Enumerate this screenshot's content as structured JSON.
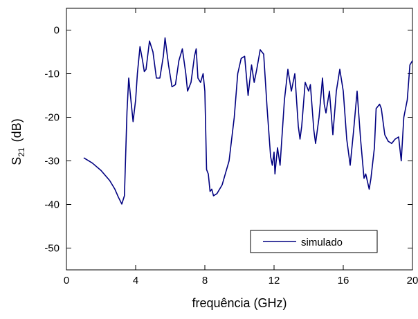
{
  "chart_data": {
    "type": "line",
    "xlabel": "frequência (GHz)",
    "ylabel": "S",
    "ylabel_subscript": "21",
    "ylabel_unit": "(dB)",
    "xlim": [
      0,
      20
    ],
    "xticks": [
      0,
      4,
      8,
      12,
      16,
      20
    ],
    "ylim": [
      -55,
      5
    ],
    "yticks": [
      -50,
      -40,
      -30,
      -20,
      -10,
      0
    ],
    "legend": "lower right",
    "series": [
      {
        "name": "simulado",
        "color": "#000080",
        "x": [
          1,
          1.5,
          2,
          2.5,
          2.8,
          3.0,
          3.2,
          3.35,
          3.5,
          3.6,
          3.7,
          3.85,
          4.0,
          4.1,
          4.25,
          4.4,
          4.5,
          4.6,
          4.8,
          5.0,
          5.2,
          5.4,
          5.6,
          5.7,
          5.9,
          6.1,
          6.3,
          6.5,
          6.7,
          6.9,
          7.0,
          7.2,
          7.4,
          7.5,
          7.6,
          7.75,
          7.9,
          8.0,
          8.1,
          8.2,
          8.3,
          8.4,
          8.5,
          8.7,
          9.0,
          9.4,
          9.7,
          9.9,
          10.1,
          10.3,
          10.5,
          10.7,
          10.85,
          11.0,
          11.2,
          11.4,
          11.6,
          11.8,
          11.9,
          12.0,
          12.05,
          12.2,
          12.35,
          12.6,
          12.8,
          13.0,
          13.2,
          13.4,
          13.5,
          13.6,
          13.8,
          14.0,
          14.1,
          14.3,
          14.4,
          14.6,
          14.8,
          14.9,
          15.0,
          15.2,
          15.4,
          15.6,
          15.8,
          16.0,
          16.2,
          16.4,
          16.6,
          16.8,
          17.0,
          17.2,
          17.3,
          17.5,
          17.6,
          17.8,
          17.9,
          18.1,
          18.2,
          18.4,
          18.6,
          18.8,
          19.0,
          19.2,
          19.35,
          19.5,
          19.7,
          19.85,
          20
        ],
        "values": [
          -29.3,
          -30.5,
          -32.2,
          -34.5,
          -36.5,
          -38.3,
          -39.9,
          -38,
          -18.7,
          -11,
          -15,
          -21,
          -16,
          -10,
          -3.8,
          -7,
          -9.5,
          -9,
          -2.5,
          -5,
          -11,
          -11,
          -6,
          -1.8,
          -8,
          -13,
          -12.5,
          -7,
          -4.3,
          -10,
          -14,
          -12,
          -6,
          -4.3,
          -11,
          -12,
          -10,
          -14,
          -32,
          -33,
          -37,
          -36.5,
          -38,
          -37.5,
          -35.5,
          -30,
          -20,
          -10,
          -6.5,
          -6,
          -15,
          -8,
          -12,
          -9,
          -4.5,
          -5.5,
          -18,
          -29,
          -31,
          -28,
          -33,
          -27,
          -31,
          -16,
          -9,
          -14,
          -10,
          -22,
          -25,
          -22,
          -12,
          -14,
          -12.5,
          -23,
          -26,
          -20,
          -11,
          -17,
          -19,
          -14,
          -24,
          -14,
          -9,
          -14,
          -25,
          -31,
          -23,
          -14,
          -25,
          -34,
          -33,
          -36.5,
          -34,
          -27,
          -18,
          -17,
          -18,
          -24,
          -25.5,
          -26,
          -25,
          -24.5,
          -30,
          -20,
          -16,
          -8,
          -7
        ]
      }
    ]
  }
}
